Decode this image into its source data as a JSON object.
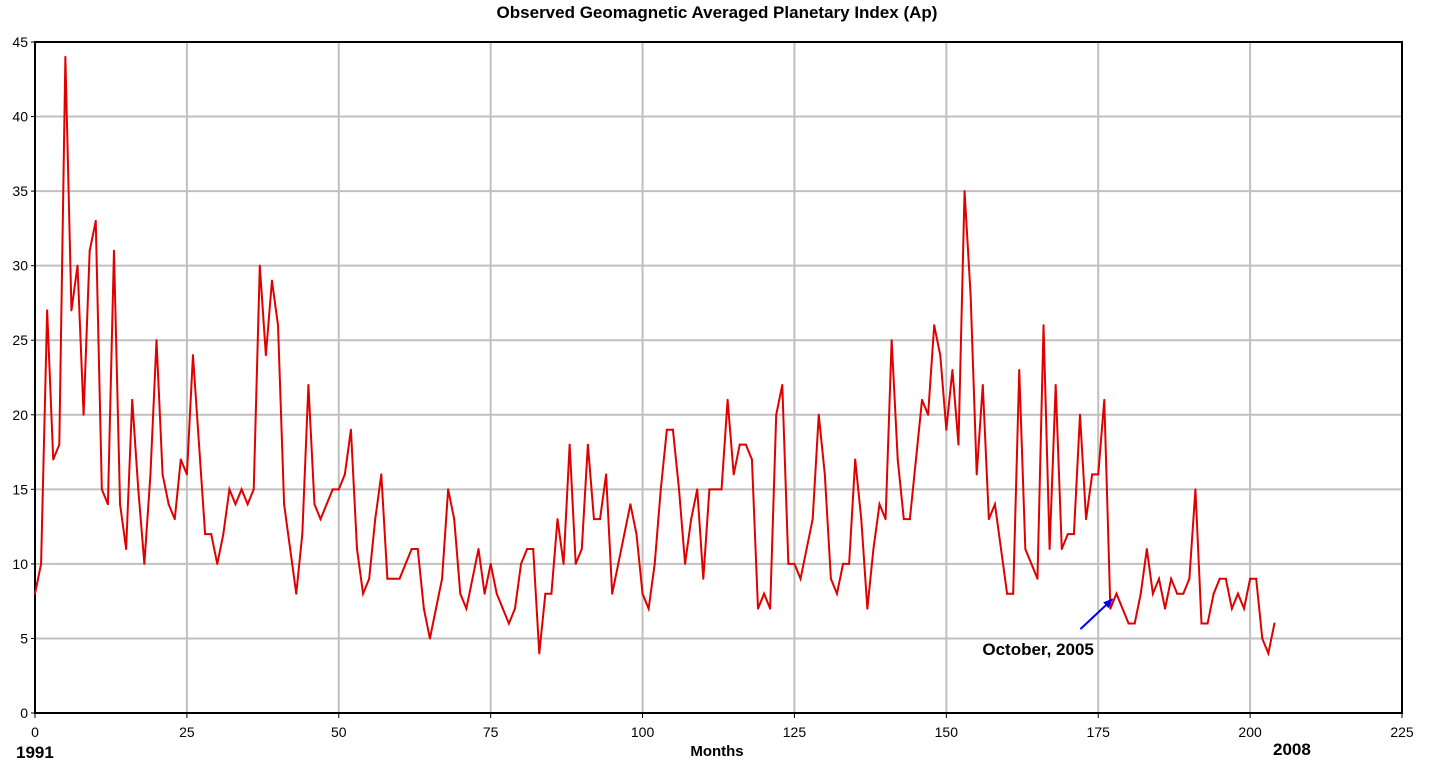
{
  "chart_data": {
    "type": "line",
    "title": "Observed Geomagnetic Averaged Planetary Index (Ap)",
    "xlabel": "Months",
    "ylabel": "",
    "xlim": [
      0,
      225
    ],
    "ylim": [
      0,
      45
    ],
    "x_ticks": [
      0,
      25,
      50,
      75,
      100,
      125,
      150,
      175,
      200,
      225
    ],
    "y_ticks": [
      0,
      5,
      10,
      15,
      20,
      25,
      30,
      35,
      40,
      45
    ],
    "grid": true,
    "line_color": "#e00000",
    "start_year_label": "1991",
    "end_year_label": "2008",
    "series": [
      {
        "values": [
          8,
          10,
          27,
          17,
          18,
          44,
          27,
          30,
          20,
          31,
          33,
          15,
          14,
          31,
          14,
          11,
          21,
          15,
          10,
          16,
          25,
          16,
          14,
          13,
          17,
          16,
          24,
          18,
          12,
          12,
          10,
          12,
          15,
          14,
          15,
          14,
          15,
          30,
          24,
          29,
          26,
          14,
          11,
          8,
          12,
          22,
          14,
          13,
          14,
          15,
          15,
          16,
          19,
          11,
          8,
          9,
          13,
          16,
          9,
          9,
          9,
          10,
          11,
          11,
          7,
          5,
          7,
          9,
          15,
          13,
          8,
          7,
          9,
          11,
          8,
          10,
          8,
          7,
          6,
          7,
          10,
          11,
          11,
          4,
          8,
          8,
          13,
          10,
          18,
          10,
          11,
          18,
          13,
          13,
          16,
          8,
          10,
          12,
          14,
          12,
          8,
          7,
          10,
          15,
          19,
          19,
          15,
          10,
          13,
          15,
          9,
          15,
          15,
          15,
          21,
          16,
          18,
          18,
          17,
          7,
          8,
          7,
          20,
          22,
          10,
          10,
          9,
          11,
          13,
          20,
          16,
          9,
          8,
          10,
          10,
          17,
          13,
          7,
          11,
          14,
          13,
          25,
          17,
          13,
          13,
          17,
          21,
          20,
          26,
          24,
          19,
          23,
          18,
          35,
          28,
          16,
          22,
          13,
          14,
          11,
          8,
          8,
          23,
          11,
          10,
          9,
          26,
          11,
          22,
          11,
          12,
          12,
          20,
          13,
          16,
          16,
          21,
          7,
          8,
          7,
          6,
          6,
          8,
          11,
          8,
          9,
          7,
          9,
          8,
          8,
          9,
          15,
          6,
          6,
          8,
          9,
          9,
          7,
          8,
          7,
          9,
          9,
          5,
          4,
          6
        ]
      }
    ],
    "annotations": [
      {
        "text": "October, 2005",
        "x": 177,
        "y": 7.5,
        "arrow_color": "#0000ff"
      }
    ]
  }
}
